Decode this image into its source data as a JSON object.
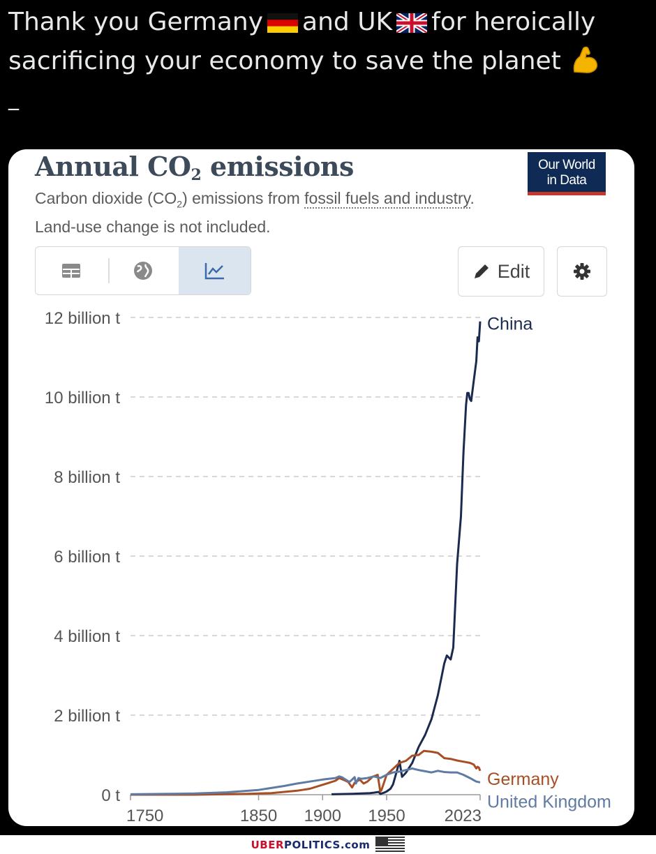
{
  "post": {
    "line1_a": "Thank you Germany",
    "line1_b": "and UK",
    "line1_c": "for heroically",
    "line2": "sacrificing your economy to save the planet",
    "dash": "_"
  },
  "card": {
    "title_main": "Annual CO",
    "title_sub": "2",
    "title_end": " emissions",
    "logo_line1": "Our World",
    "logo_line2": "in Data",
    "subtitle_a": "Carbon dioxide (CO",
    "subtitle_sub": "2",
    "subtitle_b": ") emissions from ",
    "subtitle_link": "fossil fuels and industry",
    "subtitle_c": ". Land-use change is not included.",
    "edit_label": "Edit"
  },
  "icons": [
    "table-icon",
    "globe-icon",
    "line-chart-icon",
    "pencil-icon",
    "gear-icon",
    "germany-flag-icon",
    "uk-flag-icon",
    "flexed-bicep-icon",
    "us-flag-icon"
  ],
  "footer": {
    "brand_red": "UBER",
    "brand_blue": "POLITICS.com"
  },
  "colors": {
    "china": "#1a2b4f",
    "germany": "#a84e24",
    "uk": "#5f7ba3",
    "grid": "#cccccc"
  },
  "chart_data": {
    "type": "line",
    "title": "Annual CO₂ emissions",
    "ylim": [
      0,
      12
    ],
    "y_ticks": [
      0,
      2,
      4,
      6,
      8,
      10,
      12
    ],
    "y_tick_labels": [
      "0 t",
      "2 billion t",
      "4 billion t",
      "6 billion t",
      "8 billion t",
      "10 billion t",
      "12 billion t"
    ],
    "xlim": [
      1750,
      2023
    ],
    "x_ticks": [
      1750,
      1850,
      1900,
      1950,
      2023
    ],
    "x_tick_labels": [
      "1750",
      "1850",
      "1900",
      "1950",
      "2023"
    ],
    "grid": true,
    "series": [
      {
        "name": "China",
        "x": [
          1907,
          1920,
          1930,
          1937,
          1940,
          1944,
          1945,
          1948,
          1950,
          1953,
          1955,
          1958,
          1960,
          1962,
          1965,
          1970,
          1975,
          1980,
          1985,
          1990,
          1995,
          1997,
          2000,
          2002,
          2005,
          2008,
          2010,
          2012,
          2013,
          2014,
          2015,
          2016,
          2018,
          2020,
          2021,
          2022,
          2023
        ],
        "y": [
          0.01,
          0.02,
          0.03,
          0.04,
          0.05,
          0.07,
          0.02,
          0.05,
          0.08,
          0.15,
          0.26,
          0.6,
          0.85,
          0.45,
          0.55,
          0.8,
          1.2,
          1.5,
          1.9,
          2.5,
          3.3,
          3.5,
          3.4,
          3.7,
          5.8,
          7.0,
          8.6,
          9.8,
          10.1,
          10.1,
          9.95,
          9.9,
          10.4,
          10.9,
          11.5,
          11.4,
          11.9
        ]
      },
      {
        "name": "Germany",
        "x": [
          1750,
          1800,
          1840,
          1860,
          1880,
          1890,
          1900,
          1905,
          1910,
          1913,
          1918,
          1920,
          1923,
          1925,
          1929,
          1932,
          1935,
          1939,
          1943,
          1945,
          1946,
          1950,
          1955,
          1960,
          1965,
          1970,
          1975,
          1979,
          1985,
          1990,
          1995,
          2000,
          2005,
          2010,
          2015,
          2018,
          2020,
          2021,
          2022,
          2023
        ],
        "y": [
          0.0,
          0.0,
          0.02,
          0.04,
          0.1,
          0.15,
          0.25,
          0.3,
          0.35,
          0.42,
          0.35,
          0.32,
          0.18,
          0.3,
          0.38,
          0.28,
          0.33,
          0.45,
          0.5,
          0.08,
          0.12,
          0.5,
          0.65,
          0.8,
          0.85,
          0.98,
          1.0,
          1.1,
          1.08,
          1.05,
          0.92,
          0.9,
          0.86,
          0.83,
          0.8,
          0.76,
          0.66,
          0.7,
          0.68,
          0.6
        ]
      },
      {
        "name": "United Kingdom",
        "x": [
          1750,
          1800,
          1825,
          1850,
          1870,
          1880,
          1890,
          1900,
          1910,
          1913,
          1915,
          1921,
          1925,
          1926,
          1928,
          1930,
          1935,
          1940,
          1945,
          1950,
          1955,
          1960,
          1965,
          1970,
          1975,
          1980,
          1985,
          1990,
          1995,
          2000,
          2005,
          2010,
          2015,
          2020,
          2023
        ],
        "y": [
          0.01,
          0.03,
          0.06,
          0.12,
          0.22,
          0.28,
          0.33,
          0.38,
          0.42,
          0.46,
          0.44,
          0.32,
          0.44,
          0.28,
          0.42,
          0.4,
          0.42,
          0.46,
          0.42,
          0.5,
          0.56,
          0.58,
          0.62,
          0.66,
          0.62,
          0.59,
          0.56,
          0.6,
          0.57,
          0.56,
          0.56,
          0.5,
          0.42,
          0.33,
          0.31
        ]
      }
    ]
  }
}
